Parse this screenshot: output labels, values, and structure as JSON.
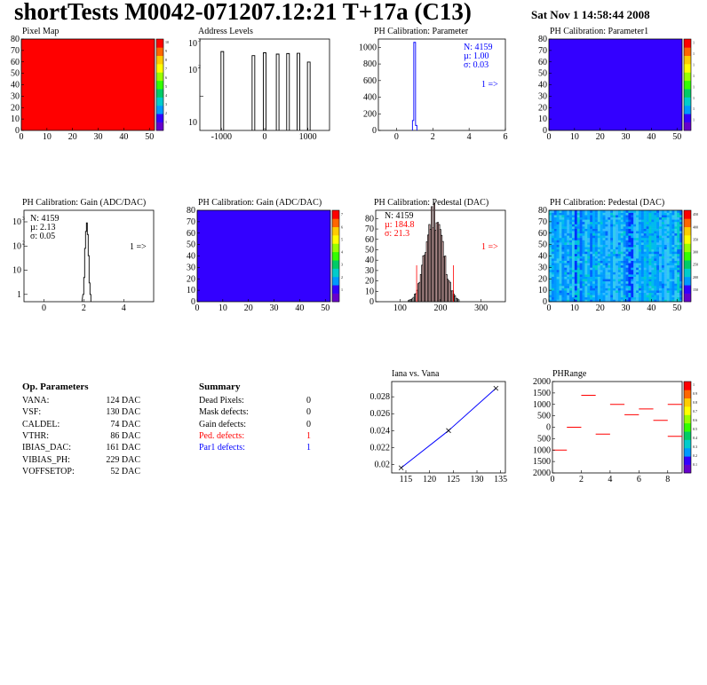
{
  "header": {
    "title": "shortTests M0042-071207.12:21 T+17a (C13)",
    "timestamp": "Sat Nov  1 14:58:44 2008"
  },
  "colors": {
    "red": "#ff0000",
    "blue": "#3300ff",
    "hist_line": "#000000",
    "blue_text": "#0000ff",
    "red_text": "#ff0000"
  },
  "chart_data": [
    {
      "id": "pixel-map",
      "type": "heatmap",
      "title": "Pixel Map",
      "x_ticks": [
        "0",
        "10",
        "20",
        "30",
        "40",
        "50"
      ],
      "y_ticks": [
        "0",
        "10",
        "20",
        "30",
        "40",
        "50",
        "60",
        "70",
        "80"
      ],
      "xlim": [
        0,
        52
      ],
      "ylim": [
        0,
        80
      ],
      "fill": "uniform red (value 10)",
      "colorbar_ticks": [
        "1",
        "2",
        "3",
        "4",
        "5",
        "6",
        "7",
        "8",
        "9",
        "10"
      ]
    },
    {
      "id": "address-levels",
      "type": "bar",
      "title": "Address Levels",
      "log_y": true,
      "x_ticks": [
        "-1000",
        "0",
        "1000"
      ],
      "xlim": [
        -1500,
        1500
      ],
      "y_ticks": [
        "10",
        "10",
        "10"
      ],
      "y_exps": [
        "3",
        "2",
        ""
      ],
      "peaks": [
        {
          "x": -980,
          "y": 500
        },
        {
          "x": -260,
          "y": 350
        },
        {
          "x": 0,
          "y": 450
        },
        {
          "x": 300,
          "y": 400
        },
        {
          "x": 540,
          "y": 420
        },
        {
          "x": 780,
          "y": 430
        },
        {
          "x": 1020,
          "y": 200
        }
      ]
    },
    {
      "id": "ph-cal-parameter",
      "type": "bar",
      "title": "PH Calibration: Parameter",
      "x_ticks": [
        "0",
        "2",
        "4",
        "6"
      ],
      "xlim": [
        -1,
        6
      ],
      "y_ticks": [
        "0",
        "200",
        "400",
        "600",
        "800",
        "1000"
      ],
      "ylim": [
        0,
        1100
      ],
      "peak": {
        "x": 1.0,
        "y": 1060
      },
      "stats": {
        "n": "N: 4159",
        "mean": "µ: 1.00",
        "sigma": "σ: 0.03"
      },
      "overflow_label": "1 =>"
    },
    {
      "id": "ph-cal-parameter1",
      "type": "heatmap",
      "title": "PH Calibration: Parameter1",
      "x_ticks": [
        "0",
        "10",
        "20",
        "30",
        "40",
        "50"
      ],
      "y_ticks": [
        "0",
        "10",
        "20",
        "30",
        "40",
        "50",
        "60",
        "70",
        "80"
      ],
      "xlim": [
        0,
        52
      ],
      "ylim": [
        0,
        80
      ],
      "fill": "uniform blue",
      "colorbar_ticks": [
        "1",
        "1",
        "1",
        "1",
        "1",
        "1",
        "1",
        "1"
      ]
    },
    {
      "id": "ph-cal-gain",
      "type": "bar",
      "title": "PH Calibration: Gain (ADC/DAC)",
      "log_y": true,
      "x_ticks": [
        "0",
        "2",
        "4"
      ],
      "xlim": [
        -1,
        5.5
      ],
      "y_ticks": [
        "1",
        "10",
        "10",
        "10"
      ],
      "y_exps": [
        "",
        "",
        "2",
        "3"
      ],
      "peak": {
        "x": 2.13,
        "y": 900
      },
      "stats": {
        "n": "N: 4159",
        "mean": "µ: 2.13",
        "sigma": "σ: 0.05"
      },
      "overflow_label": "1 =>"
    },
    {
      "id": "ph-cal-gain-map",
      "type": "heatmap",
      "title": "PH Calibration: Gain (ADC/DAC)",
      "x_ticks": [
        "0",
        "10",
        "20",
        "30",
        "40",
        "50"
      ],
      "y_ticks": [
        "0",
        "10",
        "20",
        "30",
        "40",
        "50",
        "60",
        "70",
        "80"
      ],
      "xlim": [
        0,
        52
      ],
      "ylim": [
        0,
        80
      ],
      "fill": "uniform blue",
      "colorbar_ticks": [
        "1",
        "2",
        "3",
        "4",
        "5",
        "6",
        "7"
      ]
    },
    {
      "id": "ph-cal-pedestal",
      "type": "bar",
      "title": "PH Calibration: Pedestal (DAC)",
      "x_ticks": [
        "100",
        "200",
        "300"
      ],
      "xlim": [
        40,
        360
      ],
      "y_ticks": [
        "0",
        "10",
        "20",
        "30",
        "40",
        "50",
        "60",
        "70",
        "80"
      ],
      "ylim": [
        0,
        88
      ],
      "mean": 184.8,
      "sigma": 21.3,
      "cut_lines": [
        141,
        232
      ],
      "stats": {
        "n": "N: 4159",
        "mean": "µ: 184.8",
        "sigma": "σ: 21.3"
      },
      "overflow_label": "1 =>"
    },
    {
      "id": "ph-cal-pedestal-map",
      "type": "heatmap",
      "title": "PH Calibration: Pedestal (DAC)",
      "x_ticks": [
        "0",
        "10",
        "20",
        "30",
        "40",
        "50"
      ],
      "y_ticks": [
        "0",
        "10",
        "20",
        "30",
        "40",
        "50",
        "60",
        "70",
        "80"
      ],
      "xlim": [
        0,
        52
      ],
      "ylim": [
        0,
        80
      ],
      "fill": "per-column mix of cyan/blue shades",
      "colorbar_ticks": [
        "150",
        "200",
        "250",
        "300",
        "350",
        "400",
        "450"
      ]
    },
    {
      "id": "iana-vs-vana",
      "type": "line",
      "title": "Iana vs. Vana",
      "x": [
        114,
        124,
        134
      ],
      "y": [
        0.0196,
        0.024,
        0.029
      ],
      "x_ticks": [
        "115",
        "120",
        "125",
        "130",
        "135"
      ],
      "xlim": [
        112,
        136
      ],
      "y_ticks": [
        "0.02",
        "0.022",
        "0.024",
        "0.026",
        "0.028"
      ],
      "ylim": [
        0.019,
        0.0298
      ]
    },
    {
      "id": "phrange",
      "type": "scatter",
      "title": "PHRange",
      "x_ticks": [
        "0",
        "2",
        "4",
        "6",
        "8"
      ],
      "xlim": [
        0,
        9
      ],
      "y_ticks": [
        "2000",
        "1500",
        "1000",
        "500",
        "0",
        "-500",
        "-1000",
        "-1500",
        "-2000"
      ],
      "y_tick_labels_shown": [
        "2000",
        "1500",
        "1000",
        "500",
        "0",
        "500",
        "1000",
        "1500",
        "2000"
      ],
      "ylim": [
        -2000,
        2000
      ],
      "segments": [
        {
          "x": 0.5,
          "y": -1000
        },
        {
          "x": 1.5,
          "y": 0
        },
        {
          "x": 2.5,
          "y": 1400
        },
        {
          "x": 3.5,
          "y": -300
        },
        {
          "x": 4.5,
          "y": 1000
        },
        {
          "x": 5.5,
          "y": 550
        },
        {
          "x": 6.5,
          "y": 800
        },
        {
          "x": 7.5,
          "y": 300
        },
        {
          "x": 8.5,
          "y": -400
        },
        {
          "x": 8.5,
          "y": 1000
        }
      ],
      "colorbar_ticks": [
        "0.1",
        "0.2",
        "0.3",
        "0.4",
        "0.5",
        "0.6",
        "0.7",
        "0.8",
        "0.9",
        "1"
      ]
    }
  ],
  "op_parameters": {
    "title": "Op. Parameters",
    "rows": [
      {
        "name": "VANA:",
        "value": "124 DAC"
      },
      {
        "name": "VSF:",
        "value": "130 DAC"
      },
      {
        "name": "CALDEL:",
        "value": "74 DAC"
      },
      {
        "name": "VTHR:",
        "value": "86 DAC"
      },
      {
        "name": "IBIAS_DAC:",
        "value": "161 DAC"
      },
      {
        "name": "VIBIAS_PH:",
        "value": "229 DAC"
      },
      {
        "name": "VOFFSETOP:",
        "value": "52 DAC"
      }
    ]
  },
  "summary": {
    "title": "Summary",
    "rows": [
      {
        "name": "Dead Pixels:",
        "value": "0",
        "color": "#000000"
      },
      {
        "name": "Mask defects:",
        "value": "0",
        "color": "#000000"
      },
      {
        "name": "Gain defects:",
        "value": "0",
        "color": "#000000"
      },
      {
        "name": "Ped. defects:",
        "value": "1",
        "color": "#ff0000"
      },
      {
        "name": "Par1 defects:",
        "value": "1",
        "color": "#0000ff"
      }
    ]
  }
}
